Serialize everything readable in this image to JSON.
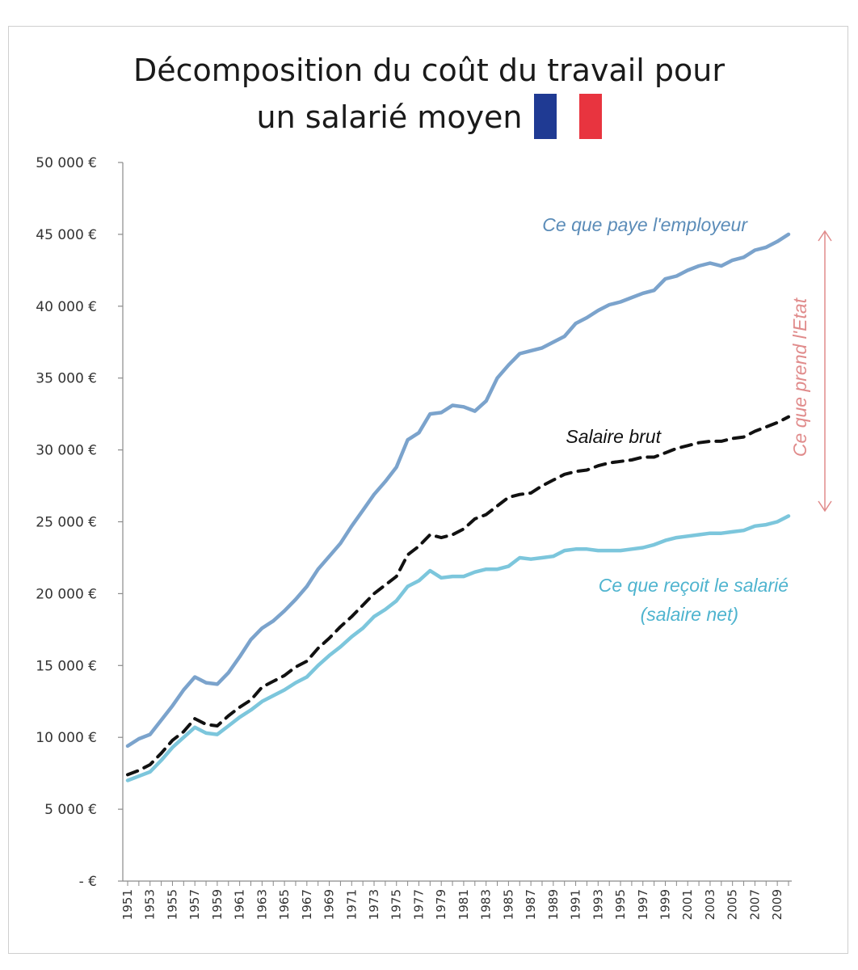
{
  "chart_data": {
    "type": "line",
    "title_line1": "Décomposition du coût du travail pour",
    "title_line2": "un salarié moyen",
    "flag_colors": {
      "blue": "#1f3a93",
      "white": "#ffffff",
      "red": "#e8343f"
    },
    "ylim": [
      0,
      50000
    ],
    "y_tick_labels": [
      "-  €",
      "5 000 €",
      "10 000 €",
      "15 000 €",
      "20 000 €",
      "25 000 €",
      "30 000 €",
      "35 000 €",
      "40 000 €",
      "45 000 €",
      "50 000 €"
    ],
    "x": [
      1951,
      1952,
      1953,
      1954,
      1955,
      1956,
      1957,
      1958,
      1959,
      1960,
      1961,
      1962,
      1963,
      1964,
      1965,
      1966,
      1967,
      1968,
      1969,
      1970,
      1971,
      1972,
      1973,
      1974,
      1975,
      1976,
      1977,
      1978,
      1979,
      1980,
      1981,
      1982,
      1983,
      1984,
      1985,
      1986,
      1987,
      1988,
      1989,
      1990,
      1991,
      1992,
      1993,
      1994,
      1995,
      1996,
      1997,
      1998,
      1999,
      2000,
      2001,
      2002,
      2003,
      2004,
      2005,
      2006,
      2007,
      2008,
      2009,
      2010
    ],
    "x_tick_labels": [
      "1951",
      "1953",
      "1955",
      "1957",
      "1959",
      "1961",
      "1963",
      "1965",
      "1967",
      "1969",
      "1971",
      "1973",
      "1975",
      "1977",
      "1979",
      "1981",
      "1983",
      "1985",
      "1987",
      "1989",
      "1991",
      "1993",
      "1995",
      "1997",
      "1999",
      "2001",
      "2003",
      "2005",
      "2007",
      "2009"
    ],
    "series": [
      {
        "name": "Ce que paye l'employeur",
        "color": "#7ba3cc",
        "style": "solid",
        "values": [
          9400,
          9900,
          10200,
          11200,
          12200,
          13300,
          14200,
          13800,
          13700,
          14500,
          15600,
          16800,
          17600,
          18100,
          18800,
          19600,
          20500,
          21700,
          22600,
          23500,
          24700,
          25800,
          26900,
          27800,
          28800,
          30700,
          31200,
          32500,
          32600,
          33100,
          33000,
          32700,
          33400,
          35000,
          35900,
          36700,
          36900,
          37100,
          37500,
          37900,
          38800,
          39200,
          39700,
          40100,
          40300,
          40600,
          40900,
          41100,
          41900,
          42100,
          42500,
          42800,
          43000,
          42800,
          43200,
          43400,
          43900,
          44100,
          44500,
          45000
        ]
      },
      {
        "name": "Salaire brut",
        "color": "#111111",
        "style": "dashed",
        "values": [
          7400,
          7700,
          8100,
          8900,
          9800,
          10400,
          11300,
          10900,
          10800,
          11500,
          12100,
          12600,
          13500,
          13900,
          14300,
          14900,
          15300,
          16200,
          16900,
          17700,
          18400,
          19200,
          20000,
          20600,
          21200,
          22700,
          23300,
          24100,
          23900,
          24100,
          24500,
          25200,
          25500,
          26100,
          26700,
          26900,
          27000,
          27500,
          27900,
          28300,
          28500,
          28600,
          28900,
          29100,
          29200,
          29300,
          29500,
          29500,
          29800,
          30100,
          30300,
          30500,
          30600,
          30600,
          30800,
          30900,
          31300,
          31600,
          31900,
          32300
        ]
      },
      {
        "name": "Ce que reçoit le salarié (salaire net)",
        "color": "#7cc6dc",
        "style": "solid",
        "values": [
          7000,
          7300,
          7600,
          8400,
          9300,
          10000,
          10700,
          10300,
          10200,
          10800,
          11400,
          11900,
          12500,
          12900,
          13300,
          13800,
          14200,
          15000,
          15700,
          16300,
          17000,
          17600,
          18400,
          18900,
          19500,
          20500,
          20900,
          21600,
          21100,
          21200,
          21200,
          21500,
          21700,
          21700,
          21900,
          22500,
          22400,
          22500,
          22600,
          23000,
          23100,
          23100,
          23000,
          23000,
          23000,
          23100,
          23200,
          23400,
          23700,
          23900,
          24000,
          24100,
          24200,
          24200,
          24300,
          24400,
          24700,
          24800,
          25000,
          25400
        ]
      }
    ],
    "annotations": {
      "employer": "Ce que paye l'employeur",
      "brut": "Salaire brut",
      "net_line1": "Ce que reçoit le salarié",
      "net_line2": "(salaire net)",
      "state": "Ce que prend l'Etat"
    },
    "annotation_colors": {
      "employer": "#5b8cb8",
      "brut": "#111111",
      "net": "#4fb4cf",
      "state": "#e08b8b"
    },
    "grid": false,
    "legend": "none"
  }
}
